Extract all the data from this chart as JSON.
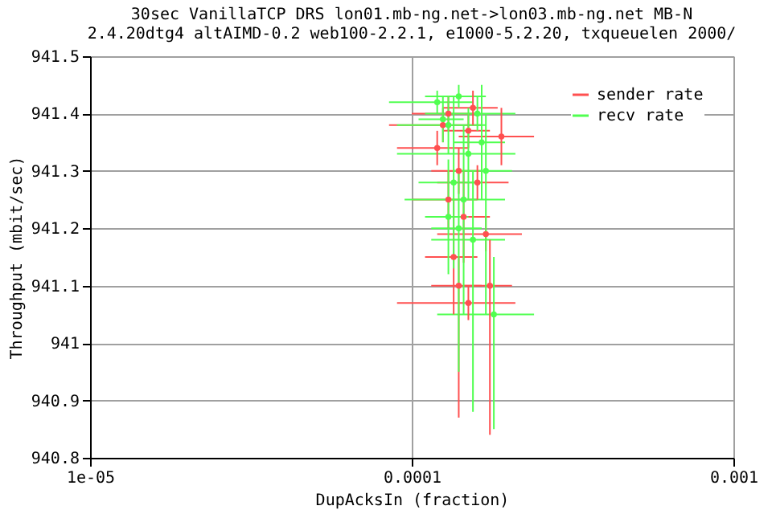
{
  "chart_data": {
    "type": "scatter",
    "title": [
      "30sec VanillaTCP DRS lon01.mb-ng.net->lon03.mb-ng.net MB-N",
      "2.4.20dtg4 altAIMD-0.2 web100-2.2.1, e1000-5.2.20, txqueuelen 2000/"
    ],
    "xlabel": "DupAcksIn (fraction)",
    "ylabel": "Throughput (mbit/sec)",
    "log": "x",
    "xlim": [
      1e-05,
      0.001
    ],
    "xticks": [
      {
        "value": 1e-05,
        "label": "1e-05"
      },
      {
        "value": 0.0001,
        "label": "0.0001"
      },
      {
        "value": 0.001,
        "label": "0.001"
      }
    ],
    "ylim": [
      940.8,
      941.5
    ],
    "yticks": [
      940.8,
      940.9,
      941,
      941.1,
      941.2,
      941.3,
      941.4,
      941.5
    ],
    "grid": true,
    "legend": "top right",
    "marker": "circle",
    "series": [
      {
        "name": "sender rate",
        "color": "#ff5050",
        "x": [
          0.00013,
          0.00015,
          0.00019,
          0.00012,
          0.00014,
          0.00016,
          0.00013,
          0.000145,
          0.00017,
          0.000135,
          0.00015,
          0.00014,
          0.000175,
          0.000125,
          0.000155
        ],
        "values": [
          941.4,
          941.37,
          941.36,
          941.34,
          941.3,
          941.28,
          941.25,
          941.22,
          941.19,
          941.15,
          941.07,
          941.1,
          941.1,
          941.38,
          941.41
        ],
        "xerrors": [
          3e-05,
          2.5e-05,
          5e-05,
          3e-05,
          2.5e-05,
          4e-05,
          3e-05,
          3e-05,
          5e-05,
          2.5e-05,
          6e-05,
          2.5e-05,
          3e-05,
          4e-05,
          3e-05
        ],
        "errors": [
          0.03,
          0.03,
          0.05,
          0.03,
          0.04,
          0.03,
          0.05,
          0.08,
          0.03,
          0.1,
          0.03,
          [
            940.87,
            941.15
          ],
          [
            940.84,
            941.18
          ],
          0.03,
          0.03
        ]
      },
      {
        "name": "recv rate",
        "color": "#50ff50",
        "x": [
          0.00012,
          0.00014,
          0.00016,
          0.00013,
          0.00015,
          0.000135,
          0.000145,
          0.00017,
          0.000155,
          0.00014,
          0.00018,
          0.00013,
          0.000165,
          0.000125
        ],
        "values": [
          941.42,
          941.43,
          941.4,
          941.38,
          941.33,
          941.28,
          941.25,
          941.3,
          941.18,
          941.2,
          941.05,
          941.22,
          941.35,
          941.39
        ],
        "xerrors": [
          3.5e-05,
          3e-05,
          5e-05,
          4e-05,
          6e-05,
          3e-05,
          5e-05,
          3.5e-05,
          4e-05,
          2.5e-05,
          6e-05,
          2e-05,
          3e-05,
          2e-05
        ],
        "errors": [
          0.02,
          0.02,
          0.03,
          0.05,
          0.08,
          0.15,
          [
            941.05,
            941.38
          ],
          [
            941.05,
            941.4
          ],
          [
            940.88,
            941.3
          ],
          [
            940.95,
            941.3
          ],
          [
            940.85,
            941.15
          ],
          0.1,
          0.1,
          0.04
        ]
      }
    ]
  }
}
